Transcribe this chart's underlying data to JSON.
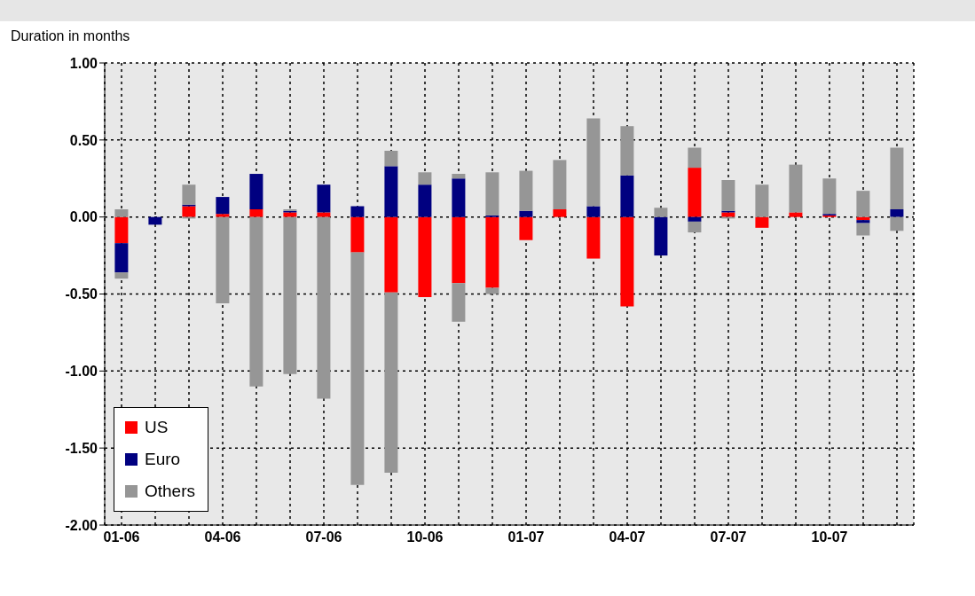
{
  "chart_data": {
    "type": "bar",
    "ylabel": "Duration in months",
    "categories": [
      "01-06",
      null,
      null,
      "04-06",
      null,
      null,
      "07-06",
      null,
      null,
      "10-06",
      null,
      null,
      "01-07",
      null,
      null,
      "04-07",
      null,
      null,
      "07-07",
      null,
      null,
      "10-07",
      null,
      null
    ],
    "series": [
      {
        "name": "US",
        "color": "#ff0000",
        "values": [
          -0.17,
          null,
          0.07,
          0.02,
          0.05,
          0.03,
          0.03,
          -0.23,
          -0.49,
          -0.52,
          -0.43,
          -0.46,
          -0.15,
          0.05,
          -0.27,
          -0.58,
          null,
          0.32,
          0.03,
          -0.07,
          0.03,
          0.01,
          -0.02,
          null
        ]
      },
      {
        "name": "Euro",
        "color": "#000080",
        "values": [
          -0.19,
          -0.05,
          0.01,
          0.11,
          0.23,
          0.01,
          0.18,
          0.07,
          0.33,
          0.21,
          0.25,
          0.01,
          0.04,
          null,
          0.07,
          0.27,
          -0.25,
          -0.03,
          0.01,
          null,
          null,
          0.01,
          -0.02,
          0.05
        ]
      },
      {
        "name": "Others",
        "color": "#969696",
        "values": [
          0.05,
          null,
          0.13,
          -0.56,
          -1.1,
          -1.02,
          -1.18,
          -1.51,
          -1.17,
          0.08,
          -0.25,
          0.28,
          0.26,
          0.32,
          0.57,
          0.32,
          0.06,
          0.13,
          0.2,
          0.21,
          0.31,
          0.23,
          0.17,
          0.4
        ]
      },
      {
        "color": "#969696",
        "values": [
          -0.04,
          null,
          -0.01,
          null,
          null,
          0.01,
          null,
          null,
          0.1,
          null,
          0.03,
          -0.04,
          null,
          null,
          null,
          null,
          null,
          -0.07,
          -0.01,
          null,
          null,
          null,
          -0.08,
          -0.09
        ]
      }
    ],
    "stacked": true,
    "ylim": [
      -2,
      1
    ],
    "yticks": [
      {
        "value": -2,
        "label": "-2.00"
      },
      {
        "value": -1.5,
        "label": "-1.50"
      },
      {
        "value": -1,
        "label": "-1.00"
      },
      {
        "value": -0.5,
        "label": "-0.50"
      },
      {
        "value": 0,
        "label": "0.00"
      },
      {
        "value": 0.5,
        "label": "0.50"
      },
      {
        "value": 1,
        "label": "1.00"
      }
    ],
    "grid": true,
    "legend": "bottom left"
  }
}
